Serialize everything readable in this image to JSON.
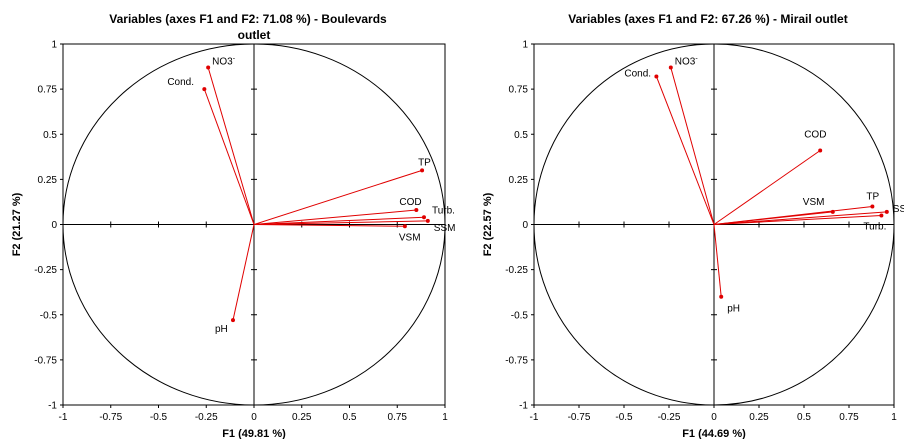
{
  "chart_data": [
    {
      "type": "scatter",
      "title_line1": "Variables (axes F1 and F2: 71.08 %) - Boulevards",
      "title_line2": "outlet",
      "xlabel": "F1 (49.81 %)",
      "ylabel": "F2 (21.27 %)",
      "xlim": [
        -1,
        1
      ],
      "ylim": [
        -1,
        1
      ],
      "xticks": [
        "-1",
        "-0.75",
        "-0.5",
        "-0.25",
        "0",
        "0.25",
        "0.5",
        "0.75",
        "1"
      ],
      "yticks": [
        "-1",
        "-0.75",
        "-0.5",
        "-0.25",
        "0",
        "0.25",
        "0.5",
        "0.75",
        "1"
      ],
      "vector_color": "#e00000",
      "points": [
        {
          "name": "NO3",
          "sub": "-",
          "x": -0.24,
          "y": 0.87
        },
        {
          "name": "Cond.",
          "x": -0.26,
          "y": 0.75
        },
        {
          "name": "TP",
          "x": 0.88,
          "y": 0.3
        },
        {
          "name": "COD",
          "x": 0.85,
          "y": 0.08
        },
        {
          "name": "Turb.",
          "x": 0.89,
          "y": 0.04
        },
        {
          "name": "SSM",
          "x": 0.91,
          "y": 0.02
        },
        {
          "name": "VSM",
          "x": 0.79,
          "y": -0.01
        },
        {
          "name": "pH",
          "x": -0.11,
          "y": -0.53
        }
      ]
    },
    {
      "type": "scatter",
      "title_line1": "Variables (axes F1 and F2: 67.26 %) - Mirail outlet",
      "title_line2": "",
      "xlabel": "F1 (44.69 %)",
      "ylabel": "F2 (22.57 %)",
      "xlim": [
        -1,
        1
      ],
      "ylim": [
        -1,
        1
      ],
      "xticks": [
        "-1",
        "-0.75",
        "-0.5",
        "-0.25",
        "0",
        "0.25",
        "0.5",
        "0.75",
        "1"
      ],
      "yticks": [
        "-1",
        "-0.75",
        "-0.5",
        "-0.25",
        "0",
        "0.25",
        "0.5",
        "0.75",
        "1"
      ],
      "vector_color": "#e00000",
      "points": [
        {
          "name": "NO3",
          "sub": "-",
          "x": -0.24,
          "y": 0.87
        },
        {
          "name": "Cond.",
          "x": -0.32,
          "y": 0.82
        },
        {
          "name": "COD",
          "x": 0.59,
          "y": 0.41
        },
        {
          "name": "VSM",
          "x": 0.66,
          "y": 0.07
        },
        {
          "name": "TP",
          "x": 0.88,
          "y": 0.1
        },
        {
          "name": "SS",
          "x": 0.96,
          "y": 0.07
        },
        {
          "name": "Turb.",
          "x": 0.93,
          "y": 0.05
        },
        {
          "name": "pH",
          "x": 0.04,
          "y": -0.4
        }
      ]
    }
  ]
}
